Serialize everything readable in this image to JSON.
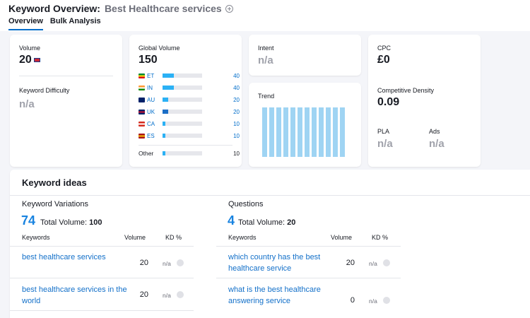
{
  "header": {
    "title": "Keyword Overview:",
    "keyword": "Best Healthcare services",
    "tabs": [
      "Overview",
      "Bulk Analysis"
    ]
  },
  "volume_card": {
    "volume_label": "Volume",
    "volume_value": "20",
    "kd_label": "Keyword Difficulty",
    "kd_value": "n/a"
  },
  "global_card": {
    "label": "Global Volume",
    "value": "150",
    "countries": [
      {
        "code": "ET",
        "value": "40",
        "bar_fraction": 0.28
      },
      {
        "code": "IN",
        "value": "40",
        "bar_fraction": 0.28
      },
      {
        "code": "AU",
        "value": "20",
        "bar_fraction": 0.14
      },
      {
        "code": "UK",
        "value": "20",
        "bar_fraction": 0.14
      },
      {
        "code": "CA",
        "value": "10",
        "bar_fraction": 0.07
      },
      {
        "code": "ES",
        "value": "10",
        "bar_fraction": 0.07
      }
    ],
    "other_label": "Other",
    "other_value": "10",
    "other_fraction": 0.07
  },
  "intent_card": {
    "label": "Intent",
    "value": "n/a"
  },
  "trend_card": {
    "label": "Trend",
    "values": [
      1,
      1,
      1,
      1,
      1,
      1,
      1,
      1,
      1,
      1,
      1,
      1
    ]
  },
  "cpc_card": {
    "cpc_label": "CPC",
    "cpc_value": "£0",
    "density_label": "Competitive Density",
    "density_value": "0.09",
    "pla_label": "PLA",
    "pla_value": "n/a",
    "ads_label": "Ads",
    "ads_value": "n/a"
  },
  "ideas": {
    "title": "Keyword ideas",
    "variations": {
      "title": "Keyword Variations",
      "count": "74",
      "total_label": "Total Volume:",
      "total_value": "100",
      "columns": [
        "Keywords",
        "Volume",
        "KD %"
      ],
      "rows": [
        {
          "keyword": "best healthcare services",
          "volume": "20",
          "kd": "n/a"
        },
        {
          "keyword": "best healthcare services in the world",
          "volume": "20",
          "kd": "n/a"
        }
      ]
    },
    "questions": {
      "title": "Questions",
      "count": "4",
      "total_label": "Total Volume:",
      "total_value": "20",
      "columns": [
        "Keywords",
        "Volume",
        "KD %"
      ],
      "rows": [
        {
          "keyword": "which country has the best healthcare service",
          "volume": "20",
          "kd": "n/a"
        },
        {
          "keyword": "what is the best healthcare answering service",
          "volume": "0",
          "kd": "n/a"
        }
      ]
    }
  },
  "colors": {
    "accent": "#006dca",
    "bar_light": "#2bb1f5",
    "bar_dark": "#1b6ec6",
    "trend": "#9fd4f3",
    "muted": "#a0a2ab"
  }
}
